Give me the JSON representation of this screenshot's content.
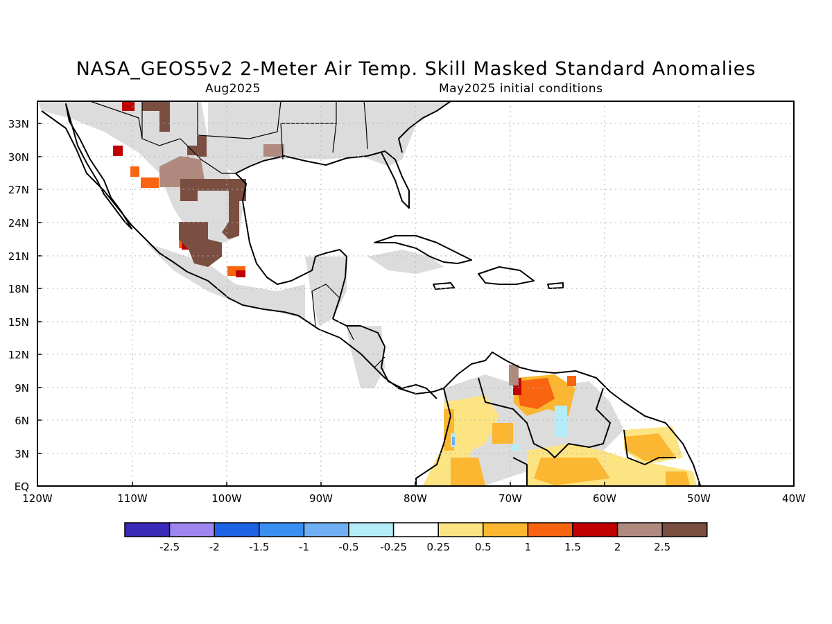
{
  "title": "NASA_GEOS5v2 2-Meter Air Temp. Skill Masked Standard Anomalies",
  "subtitle_left": "Aug2025",
  "subtitle_right": "May2025 initial conditions",
  "lat_labels": [
    "33N",
    "30N",
    "27N",
    "24N",
    "21N",
    "18N",
    "15N",
    "12N",
    "9N",
    "6N",
    "3N",
    "EQ"
  ],
  "lon_labels": [
    "120W",
    "110W",
    "100W",
    "90W",
    "80W",
    "70W",
    "60W",
    "50W",
    "40W"
  ],
  "colorbar": {
    "colors": [
      "#3a2ab8",
      "#9e86f0",
      "#1e63e6",
      "#3b8ff0",
      "#6fb0f5",
      "#b4ecfa",
      "#ffffff",
      "#fde483",
      "#fbb731",
      "#f96410",
      "#c00000",
      "#b08a7e",
      "#7a4e40"
    ],
    "labels": [
      "-2.5",
      "-2",
      "-1.5",
      "-1",
      "-0.5",
      "-0.25",
      "0.25",
      "0.5",
      "1",
      "1.5",
      "2",
      "2.5"
    ]
  }
}
